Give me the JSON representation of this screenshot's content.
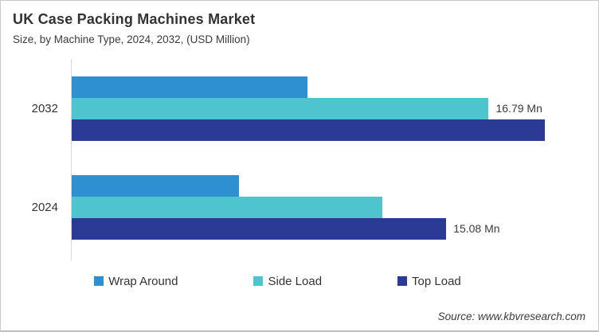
{
  "header": {
    "title": "UK Case Packing Machines Market",
    "subtitle": "Size, by Machine Type, 2024, 2032, (USD Million)"
  },
  "chart_data": {
    "type": "bar",
    "orientation": "horizontal",
    "title": "UK Case Packing Machines Market",
    "subtitle": "Size, by Machine Type, 2024, 2032, (USD Million)",
    "unit": "USD Million (Mn)",
    "categories": [
      "2032",
      "2024"
    ],
    "series": [
      {
        "name": "Wrap Around",
        "color": "#2E90D0",
        "values": [
          9.5,
          6.74
        ]
      },
      {
        "name": "Side Load",
        "color": "#4EC5CE",
        "values": [
          16.79,
          12.52
        ]
      },
      {
        "name": "Top Load",
        "color": "#2B3A94",
        "values": [
          19.04,
          15.08
        ]
      }
    ],
    "data_labels": [
      {
        "category": "2032",
        "series": "Side Load",
        "text": "16.79 Mn",
        "value": 16.79
      },
      {
        "category": "2024",
        "series": "Top Load",
        "text": "15.08 Mn",
        "value": 15.08
      }
    ],
    "xlim": [
      0,
      21.2
    ],
    "grid": false,
    "axis_line_color": "#D9D9D9",
    "legend_position": "bottom"
  },
  "footer": {
    "source": "Source: www.kbvresearch.com"
  }
}
